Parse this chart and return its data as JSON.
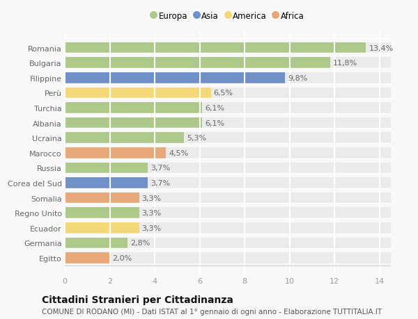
{
  "countries": [
    "Romania",
    "Bulgaria",
    "Filippine",
    "Perù",
    "Turchia",
    "Albania",
    "Ucraina",
    "Marocco",
    "Russia",
    "Corea del Sud",
    "Somalia",
    "Regno Unito",
    "Ecuador",
    "Germania",
    "Egitto"
  ],
  "values": [
    13.4,
    11.8,
    9.8,
    6.5,
    6.1,
    6.1,
    5.3,
    4.5,
    3.7,
    3.7,
    3.3,
    3.3,
    3.3,
    2.8,
    2.0
  ],
  "continents": [
    "Europa",
    "Europa",
    "Asia",
    "America",
    "Europa",
    "Europa",
    "Europa",
    "Africa",
    "Europa",
    "Asia",
    "Africa",
    "Europa",
    "America",
    "Europa",
    "Africa"
  ],
  "colors": {
    "Europa": "#adc98a",
    "Asia": "#7090c8",
    "America": "#f5d878",
    "Africa": "#e8a878"
  },
  "title": "Cittadini Stranieri per Cittadinanza",
  "subtitle": "COMUNE DI RODANO (MI) - Dati ISTAT al 1° gennaio di ogni anno - Elaborazione TUTTITALIA.IT",
  "xlim": [
    0,
    14.5
  ],
  "xticks": [
    0,
    2,
    4,
    6,
    8,
    10,
    12,
    14
  ],
  "background_color": "#f8f8f8",
  "plot_bg_color": "#f8f8f8",
  "grid_color": "#ffffff",
  "label_fontsize": 8,
  "value_fontsize": 8,
  "title_fontsize": 10,
  "subtitle_fontsize": 7.5,
  "bar_height": 0.72,
  "legend_order": [
    "Europa",
    "Asia",
    "America",
    "Africa"
  ]
}
